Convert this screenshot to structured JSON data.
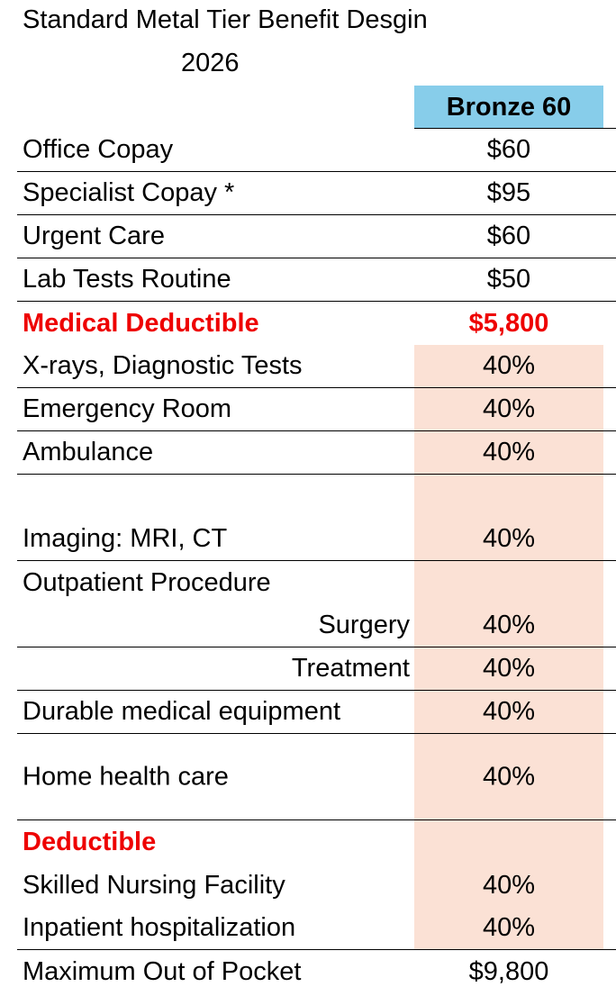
{
  "title": "Standard Metal Tier Benefit Desgin",
  "year": "2026",
  "column_header": "Bronze 60",
  "colors": {
    "header_bg": "#87cdea",
    "highlight_bg": "#fbe1d5",
    "red": "#ee0000"
  },
  "rows": [
    {
      "label": "Office Copay",
      "value": "$60",
      "line": true
    },
    {
      "label": "Specialist Copay *",
      "value": "$95",
      "line": true
    },
    {
      "label": "Urgent Care",
      "value": "$60",
      "line": true
    },
    {
      "label": "Lab Tests Routine",
      "value": "$50",
      "line": true
    },
    {
      "label": "Medical Deductible",
      "value": "$5,800",
      "red": true
    },
    {
      "label": "X-rays, Diagnostic Tests",
      "value": "40%",
      "line": true
    },
    {
      "label": "Emergency Room",
      "value": "40%",
      "line": true
    },
    {
      "label": "Ambulance",
      "value": "40%",
      "line": true
    },
    {
      "label": "Imaging: MRI, CT",
      "value": "40%",
      "line": true,
      "tall": true
    },
    {
      "label": "Outpatient Procedure",
      "value": ""
    },
    {
      "label": "Surgery",
      "value": "40%",
      "line": true,
      "right": true
    },
    {
      "label": "Treatment",
      "value": "40%",
      "line": true,
      "right": true
    },
    {
      "label": "Durable medical equipment",
      "value": "40%",
      "line": true
    },
    {
      "label": "Home health care",
      "value": "40%",
      "line": true,
      "tall": true,
      "mid": true
    },
    {
      "label": "Deductible",
      "value": "",
      "red": true
    },
    {
      "label": "Skilled Nursing Facility",
      "value": "40%"
    },
    {
      "label": "Inpatient hospitalization",
      "value": "40%",
      "line": true
    },
    {
      "label": "Maximum Out of Pocket",
      "value": "$9,800"
    }
  ]
}
